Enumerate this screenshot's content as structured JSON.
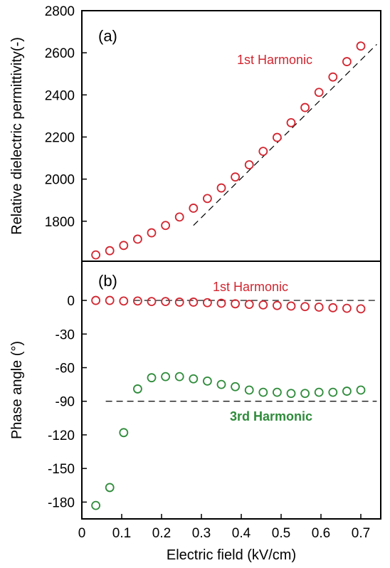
{
  "colors": {
    "first_harmonic": "#d22630",
    "third_harmonic": "#2e8b3a",
    "axis": "#000000"
  },
  "chart_data": [
    {
      "type": "scatter",
      "panel_label": "(a)",
      "ylabel": "Relative dielectric permittivity(-)",
      "xlabel": "",
      "xlim": [
        0,
        0.75
      ],
      "ylim": [
        1610,
        2800
      ],
      "y_ticks": [
        1800,
        2000,
        2200,
        2400,
        2600,
        2800
      ],
      "grid": false,
      "series": [
        {
          "name": "1st Harmonic",
          "color": "#d22630",
          "marker": "open-circle",
          "x": [
            0.035,
            0.07,
            0.105,
            0.14,
            0.175,
            0.21,
            0.245,
            0.28,
            0.315,
            0.35,
            0.385,
            0.42,
            0.455,
            0.49,
            0.525,
            0.56,
            0.595,
            0.63,
            0.665,
            0.7
          ],
          "y": [
            1640,
            1660,
            1685,
            1715,
            1745,
            1780,
            1820,
            1862,
            1908,
            1958,
            2010,
            2068,
            2132,
            2198,
            2268,
            2340,
            2412,
            2485,
            2558,
            2632
          ]
        }
      ],
      "reference_line": {
        "style": "dashed",
        "x": [
          0.28,
          0.74
        ],
        "y": [
          1780,
          2640
        ]
      }
    },
    {
      "type": "scatter",
      "panel_label": "(b)",
      "ylabel": "Phase angle (°)",
      "xlabel": "Electric field (kV/cm)",
      "xlim": [
        0,
        0.75
      ],
      "ylim": [
        -195,
        35
      ],
      "x_ticks": [
        0,
        0.1,
        0.2,
        0.3,
        0.4,
        0.5,
        0.6,
        0.7
      ],
      "x_tick_labels": [
        "0",
        "0.1",
        "0.2",
        "0.3",
        "0.4",
        "0.5",
        "0.6",
        "0.7"
      ],
      "y_ticks": [
        0,
        -30,
        -60,
        -90,
        -120,
        -150,
        -180
      ],
      "grid": false,
      "series": [
        {
          "name": "1st Harmonic",
          "color": "#d22630",
          "marker": "open-circle",
          "x": [
            0.035,
            0.07,
            0.105,
            0.14,
            0.175,
            0.21,
            0.245,
            0.28,
            0.315,
            0.35,
            0.385,
            0.42,
            0.455,
            0.49,
            0.525,
            0.56,
            0.595,
            0.63,
            0.665,
            0.7
          ],
          "y": [
            0,
            0,
            -0.5,
            -0.5,
            -1,
            -1,
            -1.5,
            -1.5,
            -2,
            -2.5,
            -3,
            -3.5,
            -4,
            -4.5,
            -5,
            -5.5,
            -6,
            -6.5,
            -7,
            -7.5
          ]
        },
        {
          "name": "3rd Harmonic",
          "color": "#2e8b3a",
          "marker": "open-circle",
          "x": [
            0.035,
            0.07,
            0.105,
            0.14,
            0.175,
            0.21,
            0.245,
            0.28,
            0.315,
            0.35,
            0.385,
            0.42,
            0.455,
            0.49,
            0.525,
            0.56,
            0.595,
            0.63,
            0.665,
            0.7
          ],
          "y": [
            -183,
            -167,
            -118,
            -79,
            -69,
            -68,
            -68,
            -70,
            -72,
            -75,
            -77,
            -80,
            -82,
            -82,
            -83,
            -83,
            -82,
            -82,
            -81,
            -80
          ]
        }
      ],
      "reference_lines": [
        {
          "style": "dashed",
          "y": 0,
          "x": [
            0.13,
            0.74
          ]
        },
        {
          "style": "dashed",
          "y": -90,
          "x": [
            0.06,
            0.74
          ]
        }
      ]
    }
  ]
}
